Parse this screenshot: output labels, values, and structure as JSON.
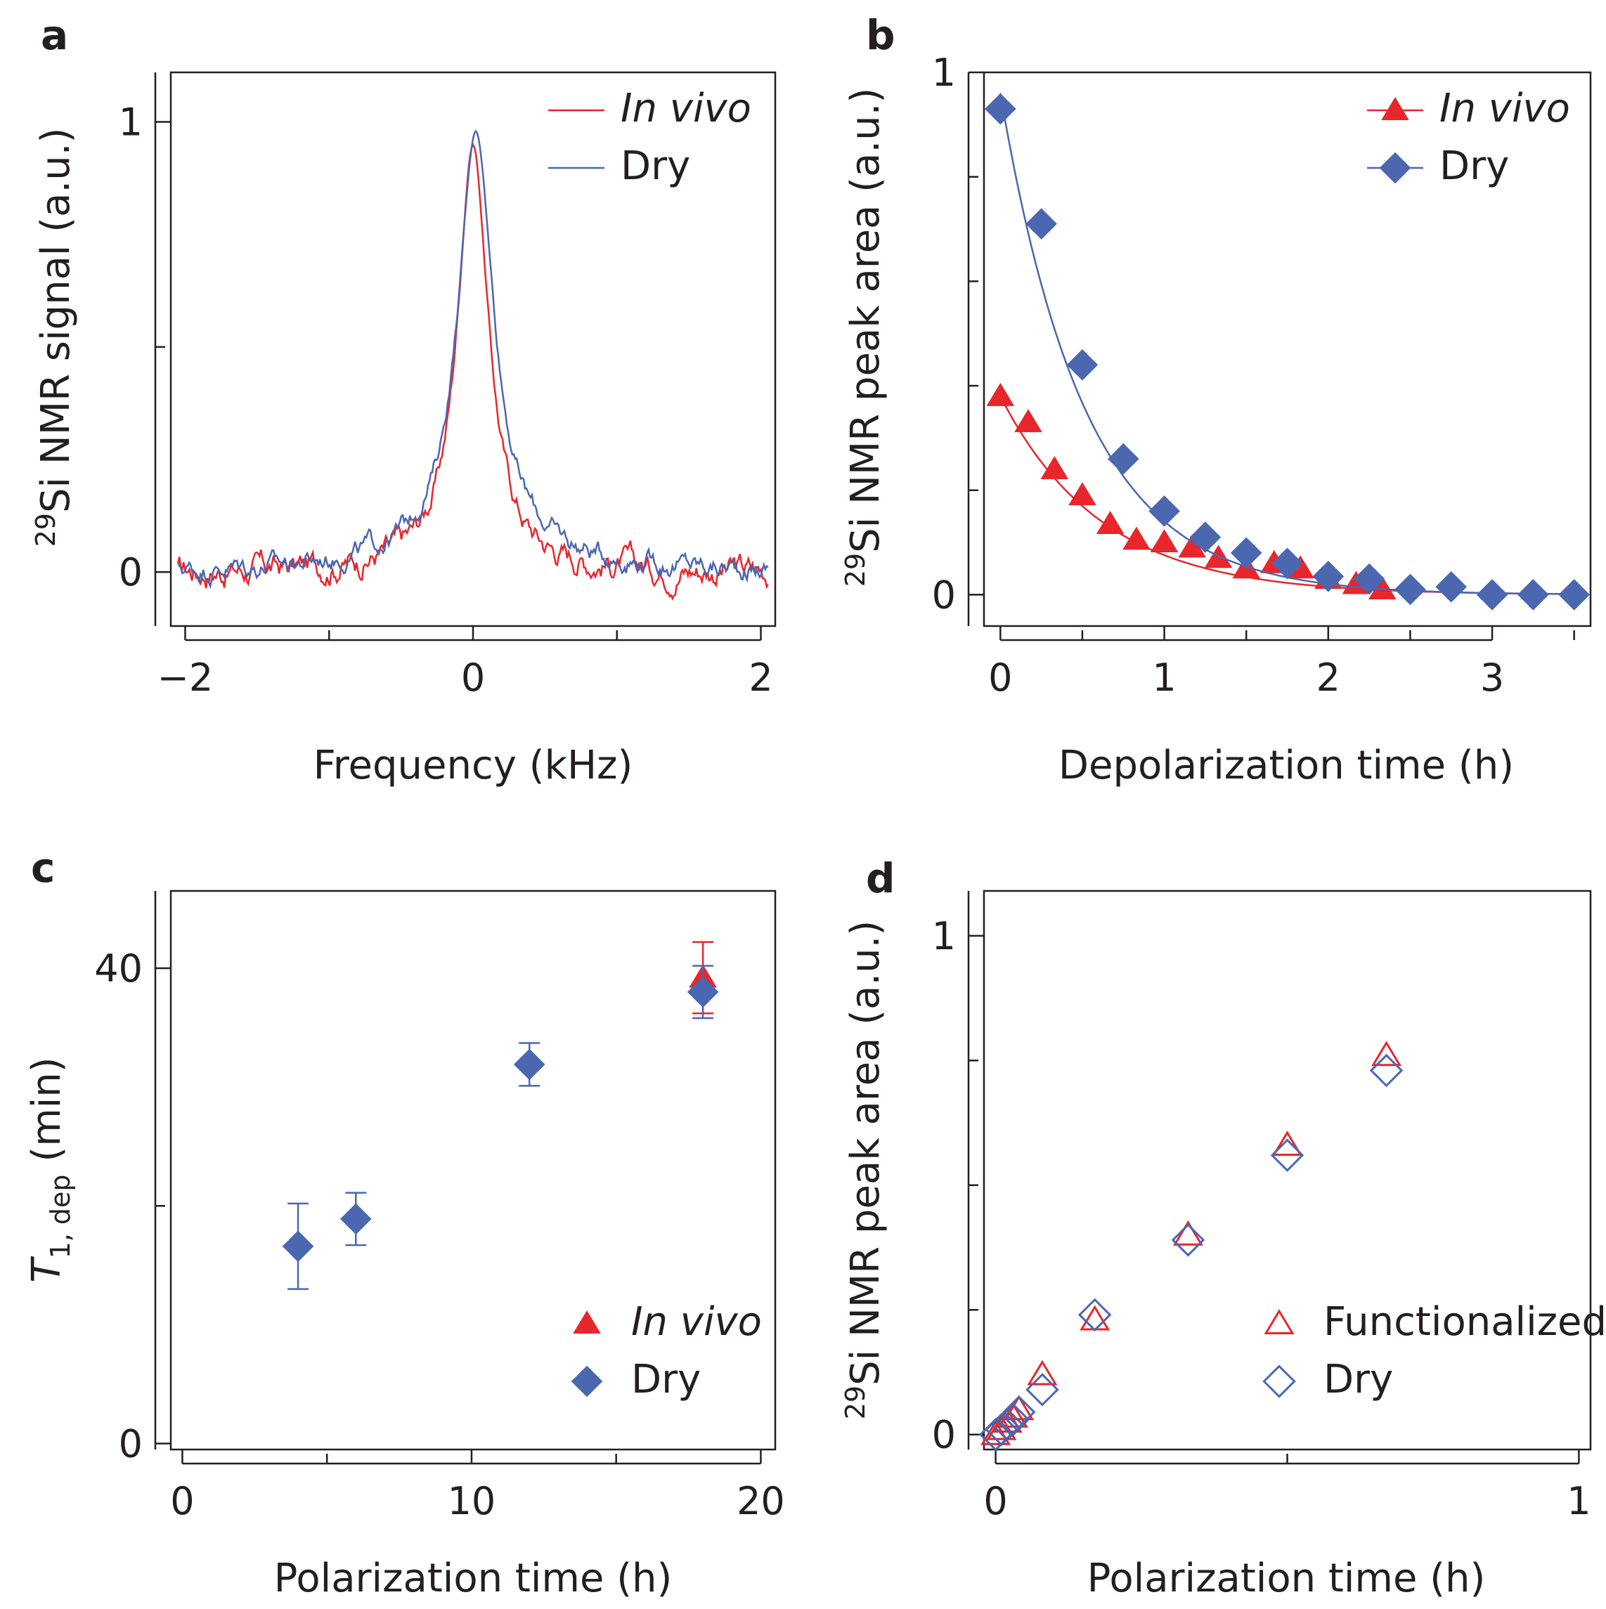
{
  "chart_data": [
    {
      "panel": "a",
      "type": "line",
      "xlabel": "Frequency (kHz)",
      "ylabel_sup": "29",
      "ylabel": "Si NMR signal (a.u.)",
      "xlim": [
        -2.1,
        2.1
      ],
      "ylim": [
        -0.12,
        1.11
      ],
      "xticks": [
        -2,
        0,
        2
      ],
      "xtick_labels": [
        "−2",
        "0",
        "2"
      ],
      "xminor": [
        -1,
        1
      ],
      "yticks": [
        0,
        1
      ],
      "ytick_labels": [
        "0",
        "1"
      ],
      "yminor": [
        0.5
      ],
      "legend": [
        "In vivo",
        "Dry"
      ],
      "series": [
        {
          "name": "In vivo",
          "color": "#e8262c",
          "peak_center_khz": 0.0,
          "peak_fwhm_khz": 0.26,
          "baseline_amplitude": 0.045
        },
        {
          "name": "Dry",
          "color": "#4a67b0",
          "peak_center_khz": 0.02,
          "peak_fwhm_khz": 0.3,
          "baseline_amplitude": 0.035
        }
      ]
    },
    {
      "panel": "b",
      "type": "scatter",
      "xlabel": "Depolarization time (h)",
      "ylabel_sup": "29",
      "ylabel": "Si NMR peak area (a.u.)",
      "xlim": [
        -0.1,
        3.6
      ],
      "ylim": [
        -0.06,
        1.0
      ],
      "xticks": [
        0,
        1,
        2,
        3
      ],
      "xtick_labels": [
        "0",
        "1",
        "2",
        "3"
      ],
      "xminor": [
        0.5,
        1.5,
        2.5,
        3.5
      ],
      "yticks": [
        0,
        1
      ],
      "ytick_labels": [
        "0",
        "1"
      ],
      "yminor": [
        0.2,
        0.4,
        0.6,
        0.8
      ],
      "legend": [
        "In vivo",
        "Dry"
      ],
      "series": [
        {
          "name": "In vivo",
          "color": "#e8262c",
          "marker": "triangle",
          "x": [
            0,
            0.17,
            0.33,
            0.5,
            0.67,
            0.83,
            1.0,
            1.17,
            1.33,
            1.5,
            1.67,
            1.83,
            2.0,
            2.17,
            2.33
          ],
          "y": [
            0.38,
            0.33,
            0.24,
            0.19,
            0.135,
            0.105,
            0.1,
            0.09,
            0.07,
            0.05,
            0.06,
            0.05,
            0.03,
            0.02,
            0.01
          ],
          "fit": {
            "a": 0.38,
            "tau": 0.62
          }
        },
        {
          "name": "Dry",
          "color": "#4a67b0",
          "marker": "diamond",
          "x": [
            0,
            0.25,
            0.5,
            0.75,
            1.0,
            1.25,
            1.5,
            1.75,
            2.0,
            2.25,
            2.5,
            2.75,
            3.0,
            3.25,
            3.5
          ],
          "y": [
            0.93,
            0.71,
            0.44,
            0.26,
            0.16,
            0.11,
            0.08,
            0.06,
            0.035,
            0.03,
            0.01,
            0.015,
            0.0,
            0.0,
            0.0
          ],
          "fit": {
            "a": 0.96,
            "tau": 0.52
          }
        }
      ]
    },
    {
      "panel": "c",
      "type": "scatter",
      "xlabel": "Polarization time (h)",
      "ylabel_italic": "T",
      "ylabel_sub": "1, dep",
      "ylabel": " (min)",
      "xlim": [
        -0.4,
        20.5
      ],
      "ylim": [
        -0.5,
        46.5
      ],
      "xticks": [
        0,
        10,
        20
      ],
      "xtick_labels": [
        "0",
        "10",
        "20"
      ],
      "xminor": [
        5,
        15
      ],
      "yticks": [
        0,
        40
      ],
      "ytick_labels": [
        "0",
        "40"
      ],
      "yminor": [
        20
      ],
      "legend": [
        "In vivo",
        "Dry"
      ],
      "series": [
        {
          "name": "In vivo",
          "color": "#e8262c",
          "marker": "triangle",
          "x": [
            18
          ],
          "y": [
            39.2
          ],
          "err": [
            3.0
          ]
        },
        {
          "name": "Dry",
          "color": "#4a67b0",
          "marker": "diamond",
          "x": [
            4,
            6,
            12,
            18
          ],
          "y": [
            16.6,
            18.9,
            31.9,
            38.0
          ],
          "err": [
            3.6,
            2.2,
            1.8,
            2.2
          ]
        }
      ]
    },
    {
      "panel": "d",
      "type": "scatter",
      "xlabel": "Polarization time (h)",
      "ylabel_sup": "29",
      "ylabel": "Si NMR peak area (a.u.)",
      "xlim": [
        -0.02,
        1.02
      ],
      "ylim": [
        -0.03,
        1.09
      ],
      "xticks": [
        0,
        1
      ],
      "xtick_labels": [
        "0",
        "1"
      ],
      "xminor": [
        0.5
      ],
      "yticks": [
        0,
        1
      ],
      "ytick_labels": [
        "0",
        "1"
      ],
      "yminor": [
        0.25,
        0.5,
        0.75
      ],
      "legend": [
        "Functionalized",
        "Dry"
      ],
      "series": [
        {
          "name": "Functionalized",
          "color": "#e8262c",
          "marker": "open-triangle",
          "x": [
            0,
            0.01,
            0.02,
            0.03,
            0.04,
            0.08,
            0.17,
            0.33,
            0.5,
            0.67
          ],
          "y": [
            0.0,
            0.01,
            0.025,
            0.035,
            0.05,
            0.12,
            0.23,
            0.4,
            0.58,
            0.76
          ]
        },
        {
          "name": "Dry",
          "color": "#4a67b0",
          "marker": "open-diamond",
          "x": [
            0,
            0.01,
            0.02,
            0.03,
            0.04,
            0.08,
            0.17,
            0.33,
            0.5,
            0.67
          ],
          "y": [
            0.0,
            0.01,
            0.02,
            0.03,
            0.045,
            0.09,
            0.24,
            0.39,
            0.56,
            0.73
          ]
        }
      ]
    }
  ]
}
